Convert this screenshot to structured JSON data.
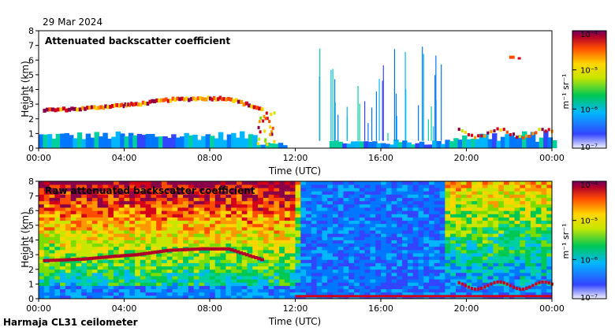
{
  "date": "29 Mar 2024",
  "footer": "Harmaja CL31 ceilometer",
  "chart_data": [
    {
      "type": "heatmap",
      "title": "Attenuated backscatter coefficient",
      "xlabel": "Time (UTC)",
      "ylabel": "Height (km)",
      "x_ticks": [
        "00:00",
        "04:00",
        "08:00",
        "12:00",
        "16:00",
        "20:00",
        "00:00"
      ],
      "y_ticks": [
        "0",
        "1",
        "2",
        "3",
        "4",
        "5",
        "6",
        "7",
        "8"
      ],
      "xlim_hours": [
        0,
        24
      ],
      "ylim_km": [
        0,
        8
      ],
      "colorbar": {
        "label": "m⁻¹ sr⁻¹",
        "ticks": [
          "10⁻⁴",
          "10⁻⁵",
          "10⁻⁶",
          "10⁻⁷"
        ],
        "range": [
          1e-07,
          0.0001
        ],
        "scale": "log"
      },
      "cloud_base_km": [
        {
          "t": 0.2,
          "h": 2.6
        },
        {
          "t": 2.0,
          "h": 2.7
        },
        {
          "t": 3.5,
          "h": 2.9
        },
        {
          "t": 4.5,
          "h": 3.0
        },
        {
          "t": 6.0,
          "h": 3.3
        },
        {
          "t": 7.5,
          "h": 3.4
        },
        {
          "t": 8.8,
          "h": 3.4
        },
        {
          "t": 10.5,
          "h": 2.6
        }
      ]
    },
    {
      "type": "heatmap",
      "title": "Raw attenuated backscatter coefficient",
      "xlabel": "Time (UTC)",
      "ylabel": "Height (km)",
      "x_ticks": [
        "00:00",
        "04:00",
        "08:00",
        "12:00",
        "16:00",
        "20:00",
        "00:00"
      ],
      "y_ticks": [
        "0",
        "1",
        "2",
        "3",
        "4",
        "5",
        "6",
        "7",
        "8"
      ],
      "xlim_hours": [
        0,
        24
      ],
      "ylim_km": [
        0,
        8
      ],
      "colorbar": {
        "label": "m⁻¹ sr⁻¹",
        "ticks": [
          "10⁻⁴",
          "10⁻⁵",
          "10⁻⁶",
          "10⁻⁷"
        ],
        "range": [
          1e-07,
          0.0001
        ],
        "scale": "log"
      }
    }
  ]
}
